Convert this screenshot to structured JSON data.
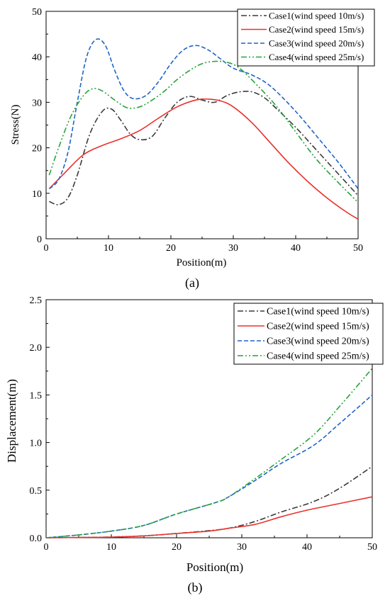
{
  "chart_data": [
    {
      "type": "line",
      "panel_label": "(a)",
      "xlabel": "Position(m)",
      "ylabel": "Stress(N)",
      "xlim": [
        0,
        50
      ],
      "ylim": [
        0,
        50
      ],
      "xticks": [
        "0",
        "10",
        "20",
        "30",
        "40",
        "50"
      ],
      "yticks": [
        "0",
        "10",
        "20",
        "30",
        "40",
        "50"
      ],
      "legend_position": "top-right",
      "grid": false,
      "series": [
        {
          "name": "Case1(wind speed 10m/s)",
          "color": "#3a3a3a",
          "dash": "dashdot",
          "x": [
            0.5,
            2,
            3.5,
            5,
            7,
            9,
            10.5,
            12,
            13.5,
            15,
            17,
            19,
            21,
            23,
            25,
            27,
            29,
            31,
            33,
            35,
            37,
            40,
            43,
            46,
            50
          ],
          "y": [
            8.2,
            7.5,
            9,
            14,
            23,
            28,
            28.5,
            26,
            23,
            21.8,
            22.5,
            26.5,
            30,
            31.3,
            30.5,
            30,
            31.5,
            32.3,
            32.3,
            31,
            28.5,
            24.5,
            20,
            15.5,
            9.5
          ]
        },
        {
          "name": "Case2(wind speed 15m/s)",
          "color": "#e8312c",
          "dash": "solid",
          "x": [
            0.5,
            3,
            6,
            9,
            12,
            15,
            18,
            21,
            24,
            26,
            28,
            30,
            33,
            36,
            39,
            42,
            45,
            48,
            50
          ],
          "y": [
            11,
            14.5,
            18.5,
            20.5,
            22,
            23.8,
            26.5,
            29,
            30.5,
            30.7,
            30.3,
            29,
            25.5,
            21,
            16.5,
            12.5,
            9,
            6,
            4.3
          ]
        },
        {
          "name": "Case3(wind speed 20m/s)",
          "color": "#2164c7",
          "dash": "dash",
          "x": [
            0.5,
            2,
            3.5,
            5,
            6.5,
            8,
            9.5,
            11,
            12.5,
            14,
            16,
            18,
            20,
            22,
            24,
            26,
            28,
            30,
            33,
            36,
            40,
            44,
            47,
            50
          ],
          "y": [
            11,
            13,
            19,
            30,
            40,
            43.8,
            42.5,
            37,
            32.5,
            30.8,
            31.5,
            34.5,
            38.5,
            41.5,
            42.5,
            41.5,
            39.5,
            37.5,
            36,
            33.5,
            28,
            21.5,
            16.5,
            11
          ]
        },
        {
          "name": "Case4(wind speed 25m/s)",
          "color": "#27a33a",
          "dash": "dashdotdot",
          "x": [
            0.5,
            2,
            4,
            6,
            7.5,
            9,
            11,
            13,
            15,
            17,
            19,
            21,
            23,
            25,
            27,
            29,
            31,
            34,
            37,
            40,
            43,
            46,
            50
          ],
          "y": [
            14,
            20,
            27,
            31.5,
            33,
            32.5,
            30.5,
            28.8,
            29,
            30.5,
            32.5,
            35,
            37,
            38.5,
            39,
            38.8,
            37.5,
            33.5,
            29,
            23.5,
            18,
            13.5,
            8
          ]
        }
      ]
    },
    {
      "type": "line",
      "panel_label": "(b)",
      "xlabel": "Position(m)",
      "ylabel": "Displacement(m)",
      "xlim": [
        0,
        50
      ],
      "ylim": [
        0,
        2.5
      ],
      "xticks": [
        "0",
        "10",
        "20",
        "30",
        "40",
        "50"
      ],
      "yticks": [
        "0.0",
        "0.5",
        "1.0",
        "1.5",
        "2.0",
        "2.5"
      ],
      "legend_position": "top-right",
      "grid": false,
      "series": [
        {
          "name": "Case1(wind speed 10m/s)",
          "color": "#3a3a3a",
          "dash": "dashdot",
          "x": [
            0,
            5,
            10,
            15,
            20,
            25,
            28,
            32,
            36,
            41,
            45,
            50
          ],
          "y": [
            0,
            0.003,
            0.008,
            0.02,
            0.045,
            0.075,
            0.1,
            0.17,
            0.27,
            0.38,
            0.52,
            0.75
          ]
        },
        {
          "name": "Case2(wind speed 15m/s)",
          "color": "#e8312c",
          "dash": "solid",
          "x": [
            0,
            5,
            10,
            15,
            20,
            25,
            28,
            32,
            36,
            40,
            45,
            50
          ],
          "y": [
            0,
            0.003,
            0.007,
            0.02,
            0.045,
            0.07,
            0.1,
            0.14,
            0.22,
            0.29,
            0.36,
            0.43
          ]
        },
        {
          "name": "Case3(wind speed 20m/s)",
          "color": "#2164c7",
          "dash": "dash",
          "x": [
            0,
            5,
            10,
            15,
            20,
            26,
            28,
            32,
            36,
            41,
            45,
            50
          ],
          "y": [
            0,
            0.03,
            0.07,
            0.13,
            0.25,
            0.37,
            0.43,
            0.6,
            0.78,
            0.97,
            1.2,
            1.5
          ]
        },
        {
          "name": "Case4(wind speed 25m/s)",
          "color": "#27a33a",
          "dash": "dashdotdot",
          "x": [
            0,
            5,
            10,
            15,
            20,
            26,
            28,
            32,
            36,
            41,
            45,
            50
          ],
          "y": [
            0,
            0.03,
            0.07,
            0.13,
            0.25,
            0.37,
            0.43,
            0.62,
            0.82,
            1.08,
            1.38,
            1.78
          ]
        }
      ]
    }
  ]
}
